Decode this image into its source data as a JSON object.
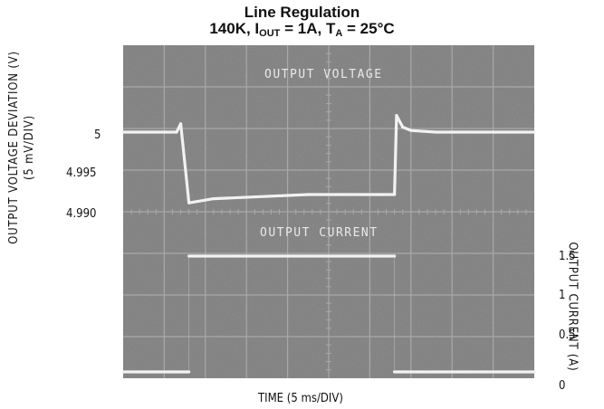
{
  "chart_data": {
    "type": "line",
    "title": "Line Regulation",
    "subtitle": {
      "prefix": "140K, I",
      "i_sub": "OUT",
      "mid": " = 1A, T",
      "t_sub": "A",
      "suffix": " = 25°C"
    },
    "xlabel": "TIME (5 ms/DIV)",
    "ylabel_left": {
      "line1": "OUTPUT VOLTAGE DEVIATION (V)",
      "line2": "(5 mV/DIV)"
    },
    "ylabel_right": "OUTPUT CURRENT (A)",
    "left_ticks": [
      {
        "label": "5",
        "value": 5.0
      },
      {
        "label": "4.995",
        "value": 4.995
      },
      {
        "label": "4.990",
        "value": 4.99
      }
    ],
    "right_ticks": [
      {
        "label": "1.5",
        "value": 1.5
      },
      {
        "label": "1",
        "value": 1.0
      },
      {
        "label": "0.5",
        "value": 0.5
      },
      {
        "label": "0",
        "value": 0.0
      }
    ],
    "grid": true,
    "divisions": {
      "x": 10,
      "y": 8
    },
    "series": [
      {
        "name": "OUTPUT VOLTAGE",
        "unit": "V",
        "x": [
          0,
          1.3,
          1.4,
          1.6,
          2.2,
          4.5,
          6.6,
          6.65,
          6.8,
          7.0,
          7.6,
          10
        ],
        "y": [
          5.0,
          5.0,
          5.001,
          4.9915,
          4.992,
          4.9925,
          4.9925,
          5.002,
          5.0006,
          5.0002,
          5.0,
          5.0
        ]
      },
      {
        "name": "OUTPUT CURRENT",
        "unit": "A",
        "x": [
          0,
          1.6,
          1.6,
          6.6,
          6.6,
          10
        ],
        "y": [
          0.0,
          0.0,
          1.5,
          1.5,
          0.0,
          0.0
        ]
      }
    ]
  },
  "colors": {
    "screen": "#7c7c7c",
    "grid": "#a9a9a9",
    "trace": "#f2f2f2",
    "text": "#111111"
  }
}
